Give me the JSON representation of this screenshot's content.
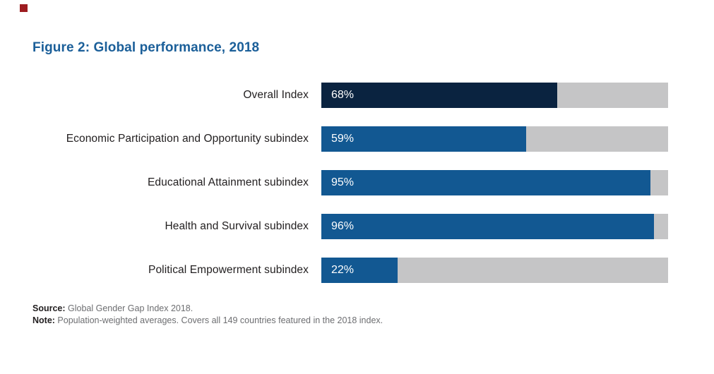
{
  "figure": {
    "title": "Figure 2: Global performance, 2018",
    "source_label": "Source:",
    "source_text": " Global Gender Gap Index 2018.",
    "note_label": "Note:",
    "note_text": " Population-weighted averages. Covers all 149 countries featured in the 2018 index."
  },
  "colors": {
    "title_blue": "#1b5f99",
    "bar_navy": "#0a2340",
    "bar_blue": "#125892",
    "track_gray": "#c5c5c6",
    "label_dark": "#232021",
    "footer_gray": "#6d6e71",
    "accent_red": "#9d1c20"
  },
  "chart_data": {
    "type": "bar",
    "orientation": "horizontal",
    "title": "Figure 2: Global performance, 2018",
    "xlabel": "",
    "ylabel": "",
    "xlim": [
      0,
      100
    ],
    "grid": false,
    "legend": false,
    "categories": [
      "Overall Index",
      "Economic Participation and Opportunity subindex",
      "Educational Attainment subindex",
      "Health and Survival subindex",
      "Political Empowerment subindex"
    ],
    "values": [
      68,
      59,
      95,
      96,
      22
    ],
    "value_labels": [
      "68%",
      "59%",
      "95%",
      "96%",
      "22%"
    ],
    "bar_colors": [
      "#0a2340",
      "#125892",
      "#125892",
      "#125892",
      "#125892"
    ],
    "track_color": "#c5c5c6",
    "unit": "percent",
    "source": "Source: Global Gender Gap Index 2018.",
    "note": "Note: Population-weighted averages. Covers all 149 countries featured in the 2018 index."
  }
}
